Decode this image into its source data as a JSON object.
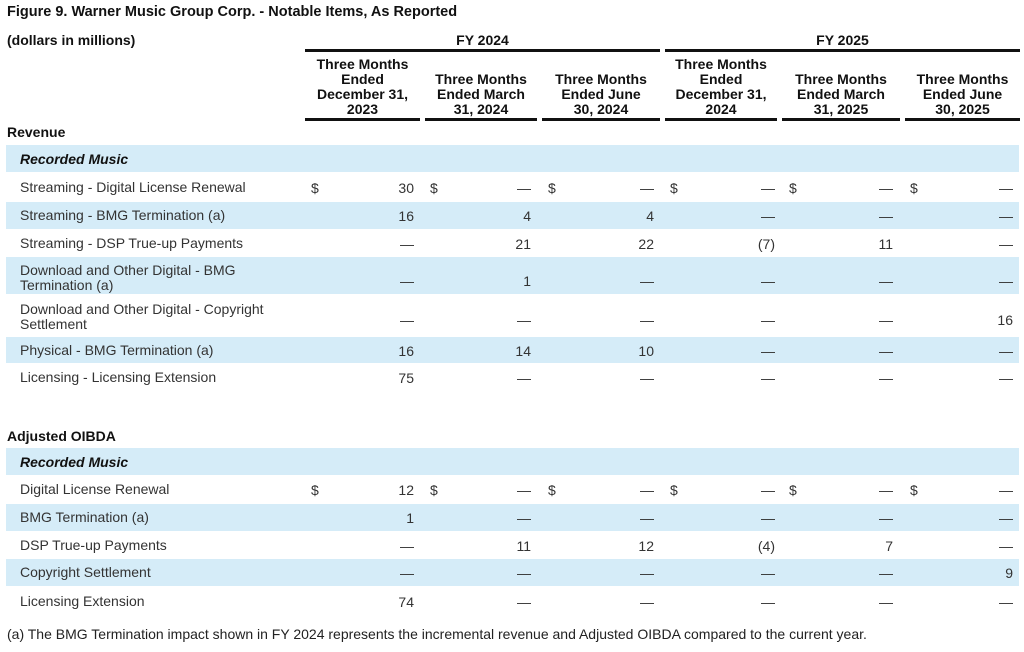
{
  "figure_title": "Figure 9.  Warner Music Group Corp. - Notable Items, As Reported",
  "units_label": "(dollars in millions)",
  "fiscal_years": [
    "FY 2024",
    "FY 2025"
  ],
  "columns": [
    [
      "Three Months",
      "Ended",
      "December 31,",
      "2023"
    ],
    [
      "Three Months",
      "Ended March",
      "31, 2024"
    ],
    [
      "Three Months",
      "Ended June",
      "30, 2024"
    ],
    [
      "Three Months",
      "Ended",
      "December 31,",
      "2024"
    ],
    [
      "Three Months",
      "Ended March",
      "31, 2025"
    ],
    [
      "Three Months",
      "Ended June",
      "30, 2025"
    ]
  ],
  "currency_symbol": "$",
  "revenue": {
    "heading": "Revenue",
    "segment": "Recorded Music",
    "rows": [
      {
        "label": [
          "Streaming - Digital License Renewal"
        ],
        "values": [
          "30",
          "—",
          "—",
          "—",
          "—",
          "—"
        ],
        "dollar": true
      },
      {
        "label": [
          "Streaming - BMG Termination (a)"
        ],
        "values": [
          "16",
          "4",
          "4",
          "—",
          "—",
          "—"
        ]
      },
      {
        "label": [
          "Streaming - DSP True-up Payments"
        ],
        "values": [
          "—",
          "21",
          "22",
          "(7)",
          "11",
          "—"
        ]
      },
      {
        "label": [
          "Download and Other Digital - BMG",
          "Termination (a)"
        ],
        "values": [
          "—",
          "1",
          "—",
          "—",
          "—",
          "—"
        ]
      },
      {
        "label": [
          "Download and Other Digital - Copyright",
          "Settlement"
        ],
        "values": [
          "—",
          "—",
          "—",
          "—",
          "—",
          "16"
        ]
      },
      {
        "label": [
          "Physical - BMG Termination (a)"
        ],
        "values": [
          "16",
          "14",
          "10",
          "—",
          "—",
          "—"
        ]
      },
      {
        "label": [
          "Licensing - Licensing Extension"
        ],
        "values": [
          "75",
          "—",
          "—",
          "—",
          "—",
          "—"
        ]
      }
    ]
  },
  "oibda": {
    "heading": "Adjusted OIBDA",
    "segment": "Recorded Music",
    "rows": [
      {
        "label": [
          "Digital License Renewal"
        ],
        "values": [
          "12",
          "—",
          "—",
          "—",
          "—",
          "—"
        ],
        "dollar": true
      },
      {
        "label": [
          "BMG Termination (a)"
        ],
        "values": [
          "1",
          "—",
          "—",
          "—",
          "—",
          "—"
        ]
      },
      {
        "label": [
          "DSP True-up Payments"
        ],
        "values": [
          "—",
          "11",
          "12",
          "(4)",
          "7",
          "—"
        ]
      },
      {
        "label": [
          "Copyright Settlement"
        ],
        "values": [
          "—",
          "—",
          "—",
          "—",
          "—",
          "9"
        ]
      },
      {
        "label": [
          "Licensing Extension"
        ],
        "values": [
          "74",
          "—",
          "—",
          "—",
          "—",
          "—"
        ]
      }
    ]
  },
  "footnote": "(a) The BMG Termination impact shown in FY 2024 represents the incremental revenue and Adjusted OIBDA compared to the current year.",
  "colors": {
    "band": "#d5ecf8",
    "rule": "#111111"
  }
}
